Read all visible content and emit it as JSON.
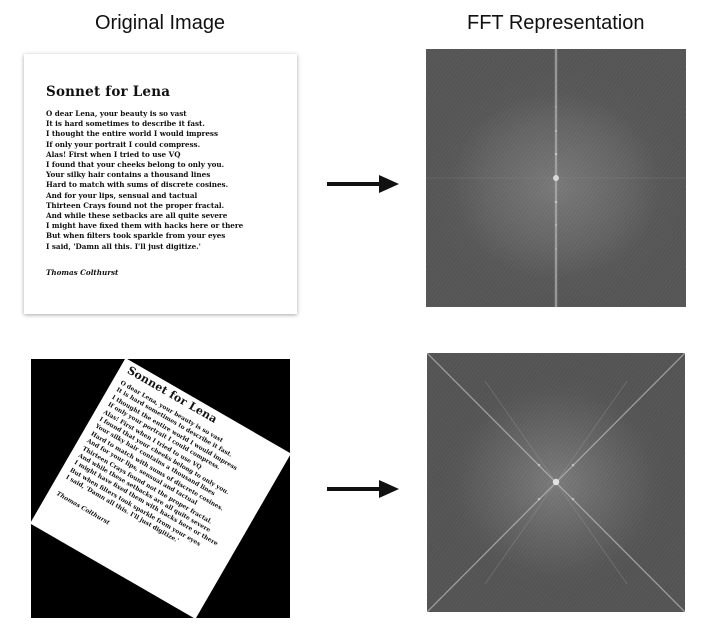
{
  "headings": {
    "left": "Original Image",
    "right": "FFT Representation"
  },
  "poem": {
    "title": "Sonnet for Lena",
    "lines": [
      "O dear Lena, your beauty is so vast",
      "It is hard sometimes to describe it fast.",
      "I thought the entire world I would impress",
      "If only your portrait I could compress.",
      "Alas! First when I tried to use VQ",
      "I found that your cheeks belong to only you.",
      "Your silky hair contains a thousand lines",
      "Hard to match with sums of discrete cosines.",
      "And for your lips, sensual and tactual",
      "Thirteen Crays found not the proper fractal.",
      "And while these setbacks are all quite severe",
      "I might have fixed them with hacks here or there",
      "But when filters took sparkle from your eyes",
      "I said, 'Damn all this. I'll just digitize.'"
    ],
    "author": "Thomas Colthurst"
  },
  "colors": {
    "arrow": "#111111",
    "fft_background": "#5a5a5a",
    "fft_line": "#bdbdbd",
    "rotated_corner": "#000000"
  },
  "icons": {
    "arrow": "right-arrow-icon"
  }
}
